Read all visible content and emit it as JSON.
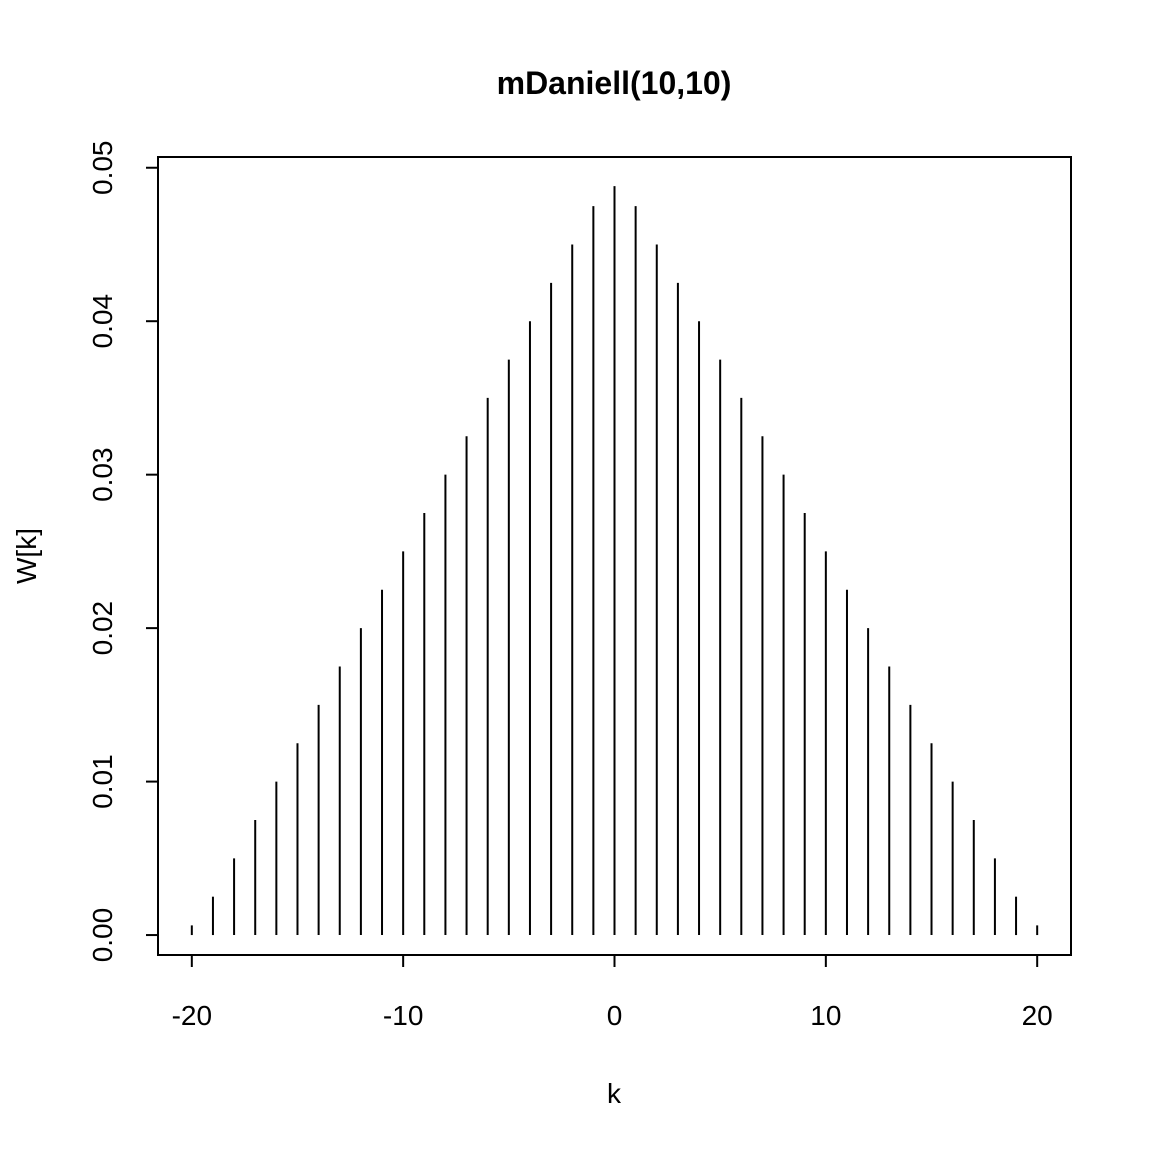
{
  "chart_data": {
    "type": "bar",
    "title": "mDaniell(10,10)",
    "xlabel": "k",
    "ylabel": "W[k]",
    "xlim": [
      -21.6,
      21.6
    ],
    "ylim": [
      -0.0013,
      0.0507
    ],
    "x_ticks": [
      -20,
      -10,
      0,
      10,
      20
    ],
    "x_tick_labels": [
      "-20",
      "-10",
      "0",
      "10",
      "20"
    ],
    "y_ticks": [
      0,
      0.01,
      0.02,
      0.03,
      0.04,
      0.05
    ],
    "y_tick_labels": [
      "0.00",
      "0.01",
      "0.02",
      "0.03",
      "0.04",
      "0.05"
    ],
    "grid": false,
    "x": [
      -20,
      -19,
      -18,
      -17,
      -16,
      -15,
      -14,
      -13,
      -12,
      -11,
      -10,
      -9,
      -8,
      -7,
      -6,
      -5,
      -4,
      -3,
      -2,
      -1,
      0,
      1,
      2,
      3,
      4,
      5,
      6,
      7,
      8,
      9,
      10,
      11,
      12,
      13,
      14,
      15,
      16,
      17,
      18,
      19,
      20
    ],
    "values": [
      0.00063,
      0.0025,
      0.005,
      0.0075,
      0.01,
      0.0125,
      0.015,
      0.0175,
      0.02,
      0.0225,
      0.025,
      0.0275,
      0.03,
      0.0325,
      0.035,
      0.0375,
      0.04,
      0.0425,
      0.045,
      0.0475,
      0.0488,
      0.0475,
      0.045,
      0.0425,
      0.04,
      0.0375,
      0.035,
      0.0325,
      0.03,
      0.0275,
      0.025,
      0.0225,
      0.02,
      0.0175,
      0.015,
      0.0125,
      0.01,
      0.0075,
      0.005,
      0.0025,
      0.00063
    ]
  }
}
